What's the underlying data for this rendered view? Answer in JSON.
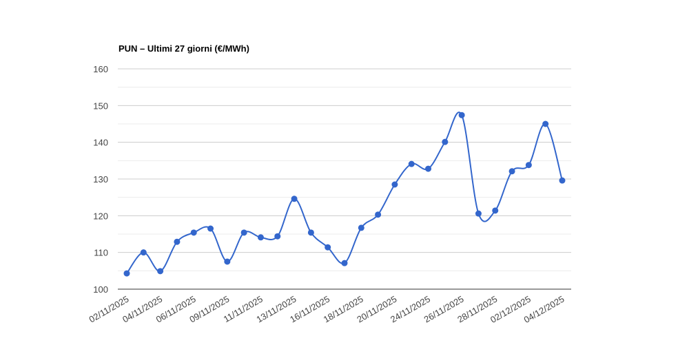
{
  "chart_data": {
    "type": "line",
    "title": "PUN – Ultimi 27 giorni (€/MWh)",
    "categories": [
      "02/11/2025",
      null,
      "04/11/2025",
      null,
      "06/11/2025",
      null,
      "09/11/2025",
      null,
      "11/11/2025",
      null,
      "13/11/2025",
      null,
      "16/11/2025",
      null,
      "18/11/2025",
      null,
      "20/11/2025",
      null,
      "24/11/2025",
      null,
      "26/11/2025",
      null,
      "28/11/2025",
      null,
      "02/12/2025",
      null,
      "04/12/2025"
    ],
    "series": [
      {
        "name": "PUN",
        "color": "#3366cc",
        "values": [
          104.3,
          110,
          104.9,
          112.9,
          115.4,
          116.5,
          107.5,
          115.4,
          114.1,
          114.4,
          124.6,
          115.4,
          111.4,
          107.1,
          116.7,
          120.3,
          128.5,
          134.1,
          132.8,
          140.1,
          147.4,
          120.6,
          121.4,
          132.1,
          133.8,
          145,
          129.6
        ]
      }
    ],
    "ylim": [
      100,
      160
    ],
    "yticks": [
      100,
      110,
      120,
      130,
      140,
      150,
      160
    ],
    "grid": true
  }
}
